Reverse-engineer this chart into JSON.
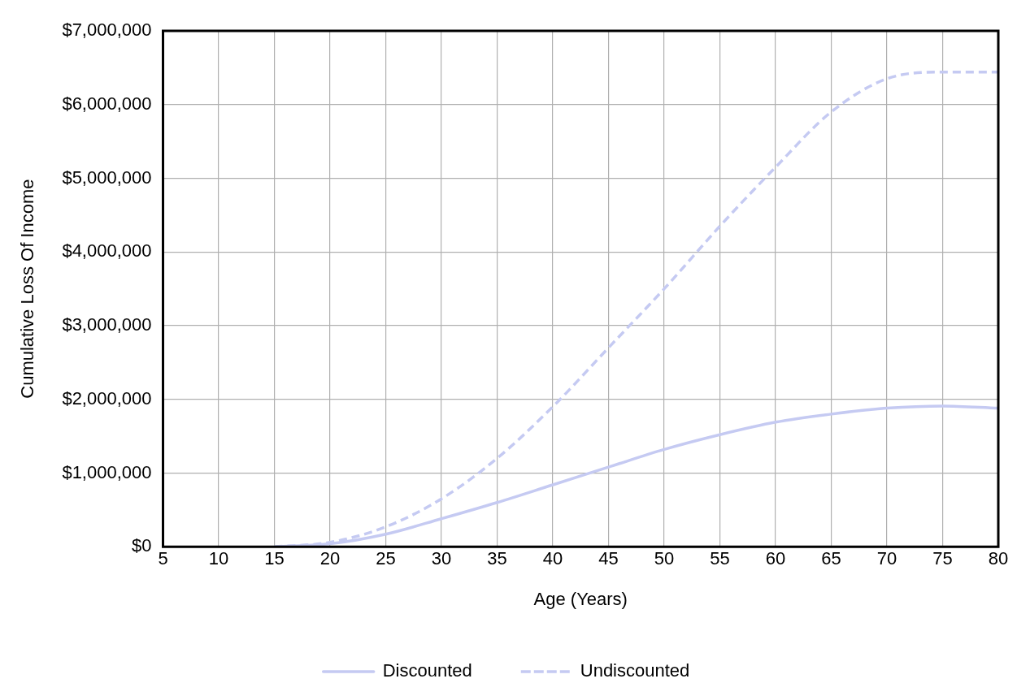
{
  "chart_data": {
    "type": "line",
    "xlabel": "Age (Years)",
    "ylabel": "Cumulative Loss Of Income",
    "x": [
      15,
      20,
      25,
      30,
      35,
      40,
      45,
      50,
      55,
      60,
      65,
      70,
      75,
      80
    ],
    "series": [
      {
        "name": "Discounted",
        "color": "#c5caf2",
        "line_style": "solid",
        "values": [
          0,
          40000,
          170000,
          380000,
          600000,
          840000,
          1080000,
          1320000,
          1520000,
          1690000,
          1800000,
          1880000,
          1910000,
          1880000
        ]
      },
      {
        "name": "Undiscounted",
        "color": "#c5caf2",
        "line_style": "dashed",
        "values": [
          0,
          60000,
          270000,
          650000,
          1200000,
          1900000,
          2700000,
          3500000,
          4350000,
          5150000,
          5900000,
          6350000,
          6440000,
          6440000
        ]
      }
    ],
    "xlim": [
      5,
      80
    ],
    "xticks": [
      5,
      10,
      15,
      20,
      25,
      30,
      35,
      40,
      45,
      50,
      55,
      60,
      65,
      70,
      75,
      80
    ],
    "ylim": [
      0,
      7000000
    ],
    "yticks": [
      {
        "value": 0,
        "label": "$0"
      },
      {
        "value": 1000000,
        "label": "$1,000,000"
      },
      {
        "value": 2000000,
        "label": "$2,000,000"
      },
      {
        "value": 3000000,
        "label": "$3,000,000"
      },
      {
        "value": 4000000,
        "label": "$4,000,000"
      },
      {
        "value": 5000000,
        "label": "$5,000,000"
      },
      {
        "value": 6000000,
        "label": "$6,000,000"
      },
      {
        "value": 7000000,
        "label": "$7,000,000"
      }
    ],
    "grid": true,
    "legend": "bottom",
    "marker": "none"
  }
}
